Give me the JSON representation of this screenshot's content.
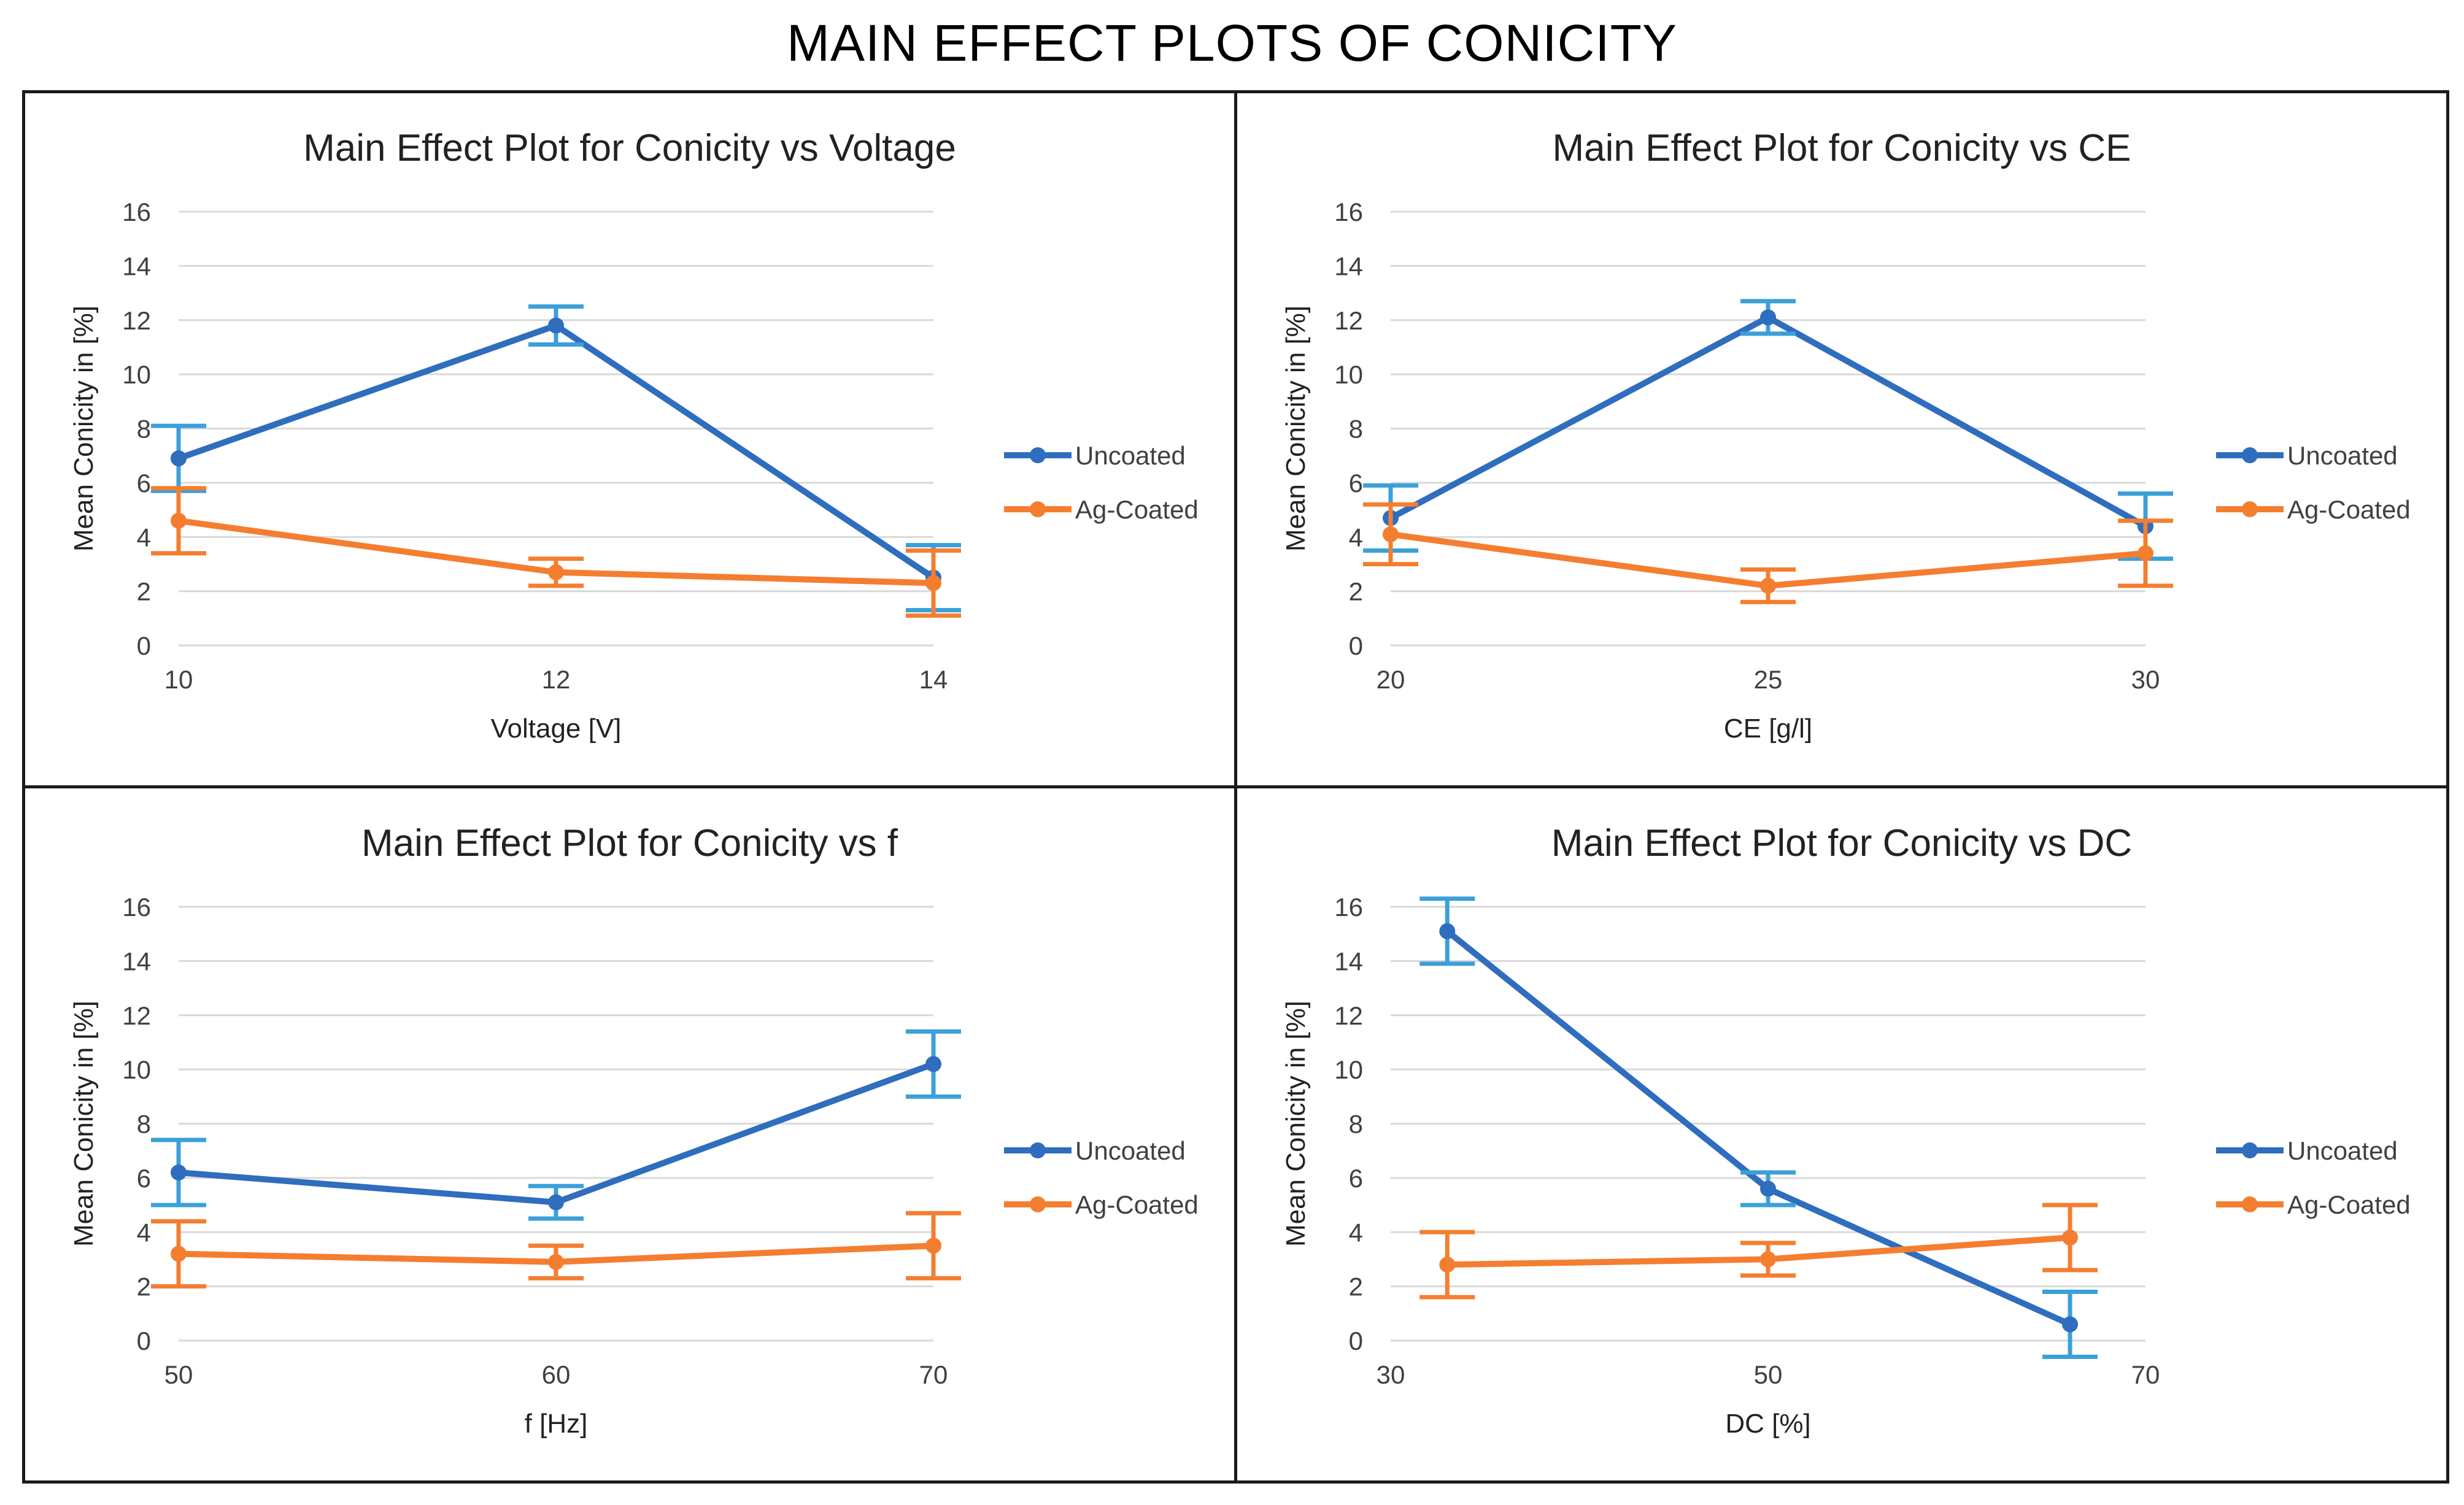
{
  "page_title": "MAIN EFFECT PLOTS OF CONICITY",
  "colors": {
    "uncoated": "#2F6DBE",
    "uncoated_err": "#3BA0DA",
    "ag_coated": "#F47E30",
    "grid": "#D9D9D9",
    "axis_text": "#404040"
  },
  "chart_data": [
    {
      "type": "line",
      "title": "Main Effect Plot for Conicity vs Voltage",
      "xlabel": "Voltage [V]",
      "ylabel": "Mean Conicity in [%]",
      "xlim": [
        10,
        14
      ],
      "xticks": [
        "10",
        "12",
        "14"
      ],
      "ylim": [
        0,
        16
      ],
      "yticks": [
        "0",
        "2",
        "4",
        "6",
        "8",
        "10",
        "12",
        "14",
        "16"
      ],
      "series": [
        {
          "name": "Uncoated",
          "x": [
            10,
            12,
            14
          ],
          "values": [
            6.9,
            11.8,
            2.5
          ],
          "err": [
            1.2,
            0.7,
            1.2
          ]
        },
        {
          "name": "Ag-Coated",
          "x": [
            10,
            12,
            14
          ],
          "values": [
            4.6,
            2.7,
            2.3
          ],
          "err": [
            1.2,
            0.5,
            1.2
          ]
        }
      ]
    },
    {
      "type": "line",
      "title": "Main Effect Plot for Conicity vs CE",
      "xlabel": "CE [g/l]",
      "ylabel": "Mean Conicity in [%]",
      "xlim": [
        20,
        30
      ],
      "xticks": [
        "20",
        "25",
        "30"
      ],
      "ylim": [
        0,
        16
      ],
      "yticks": [
        "0",
        "2",
        "4",
        "6",
        "8",
        "10",
        "12",
        "14",
        "16"
      ],
      "series": [
        {
          "name": "Uncoated",
          "x": [
            20,
            25,
            30
          ],
          "values": [
            4.7,
            12.1,
            4.4
          ],
          "err": [
            1.2,
            0.6,
            1.2
          ]
        },
        {
          "name": "Ag-Coated",
          "x": [
            20,
            25,
            30
          ],
          "values": [
            4.1,
            2.2,
            3.4
          ],
          "err": [
            1.1,
            0.6,
            1.2
          ]
        }
      ]
    },
    {
      "type": "line",
      "title": "Main Effect Plot for Conicity vs f",
      "xlabel": "f [Hz]",
      "ylabel": "Mean Conicity in [%]",
      "xlim": [
        50,
        70
      ],
      "xticks": [
        "50",
        "60",
        "70"
      ],
      "ylim": [
        0,
        16
      ],
      "yticks": [
        "0",
        "2",
        "4",
        "6",
        "8",
        "10",
        "12",
        "14",
        "16"
      ],
      "series": [
        {
          "name": "Uncoated",
          "x": [
            50,
            60,
            70
          ],
          "values": [
            6.2,
            5.1,
            10.2
          ],
          "err": [
            1.2,
            0.6,
            1.2
          ]
        },
        {
          "name": "Ag-Coated",
          "x": [
            50,
            60,
            70
          ],
          "values": [
            3.2,
            2.9,
            3.5
          ],
          "err": [
            1.2,
            0.6,
            1.2
          ]
        }
      ]
    },
    {
      "type": "line",
      "title": "Main Effect Plot for Conicity vs DC",
      "xlabel": "DC [%]",
      "ylabel": "Mean Conicity in [%]",
      "xlim": [
        30,
        70
      ],
      "xticks": [
        "30",
        "50",
        "70"
      ],
      "ylim": [
        0,
        16
      ],
      "yticks": [
        "0",
        "2",
        "4",
        "6",
        "8",
        "10",
        "12",
        "14",
        "16"
      ],
      "series": [
        {
          "name": "Uncoated",
          "x": [
            33,
            50,
            66
          ],
          "values": [
            15.1,
            5.6,
            0.6
          ],
          "err": [
            1.2,
            0.6,
            1.2
          ]
        },
        {
          "name": "Ag-Coated",
          "x": [
            33,
            50,
            66
          ],
          "values": [
            2.8,
            3.0,
            3.8
          ],
          "err": [
            1.2,
            0.6,
            1.2
          ]
        }
      ]
    }
  ]
}
